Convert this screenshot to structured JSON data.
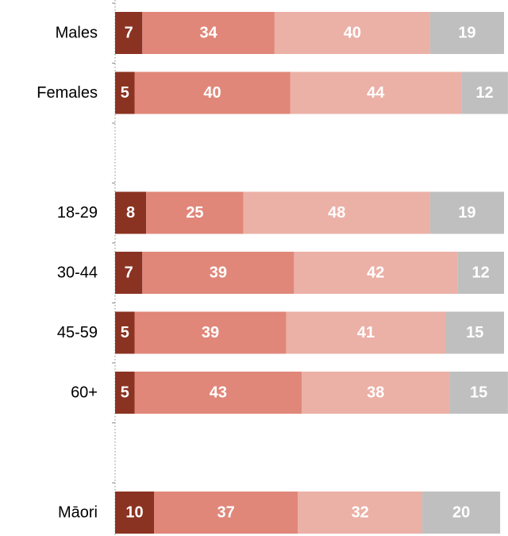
{
  "chart_data": {
    "type": "bar",
    "orientation": "horizontal",
    "stacked": true,
    "xlim": [
      0,
      100
    ],
    "categories": [
      "Males",
      "Females",
      "",
      "18-29",
      "30-44",
      "45-59",
      "60+",
      "",
      "Māori"
    ],
    "series": [
      {
        "values": [
          7,
          5,
          null,
          8,
          7,
          5,
          5,
          null,
          10
        ],
        "color": "#8b3322"
      },
      {
        "values": [
          34,
          40,
          null,
          25,
          39,
          39,
          43,
          null,
          37
        ],
        "color": "#e0877a"
      },
      {
        "values": [
          40,
          44,
          null,
          48,
          42,
          41,
          38,
          null,
          32
        ],
        "color": "#ebb0a6"
      },
      {
        "values": [
          19,
          12,
          null,
          19,
          12,
          15,
          15,
          null,
          20
        ],
        "color": "#bfbfbf"
      }
    ],
    "grid": false,
    "legend": "none"
  }
}
